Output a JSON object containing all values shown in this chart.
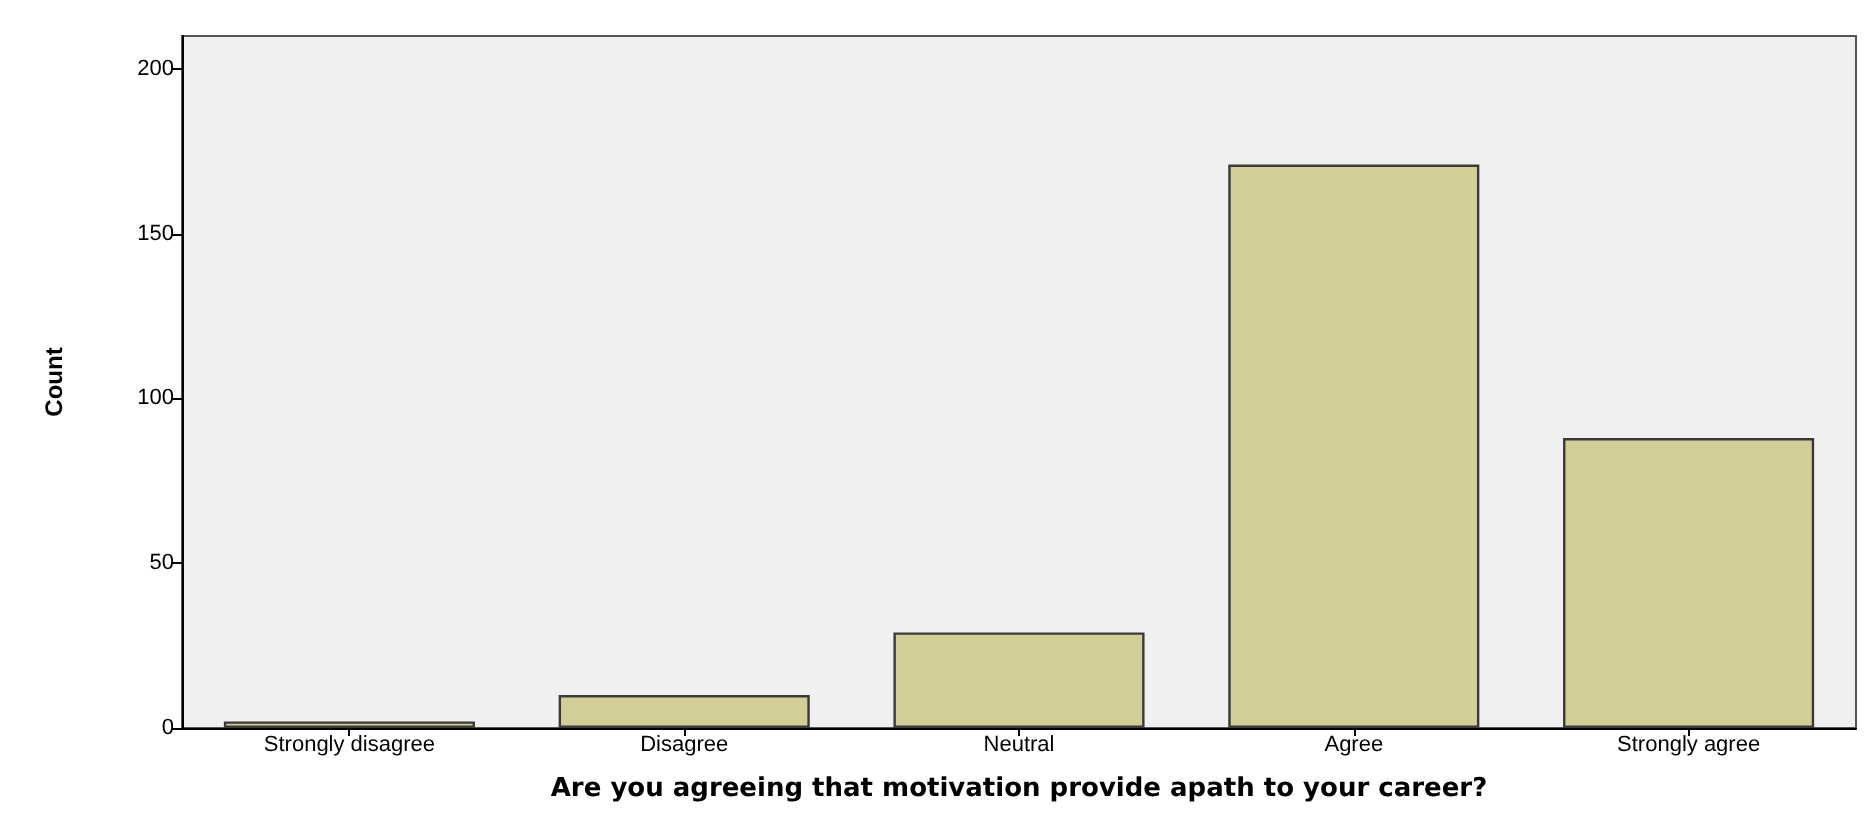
{
  "chart_data": {
    "type": "bar",
    "xlabel": "Are you agreeing that motivation provide apath to your career?",
    "ylabel": "Count",
    "categories": [
      "Strongly disagree",
      "Disagree",
      "Neutral",
      "Agree",
      "Strongly agree"
    ],
    "values": [
      2,
      10,
      29,
      171,
      88
    ],
    "color": "#d3ce98",
    "ylim": [
      0,
      210
    ],
    "yticks": [
      0,
      50,
      100,
      150,
      200
    ],
    "grid": false
  }
}
